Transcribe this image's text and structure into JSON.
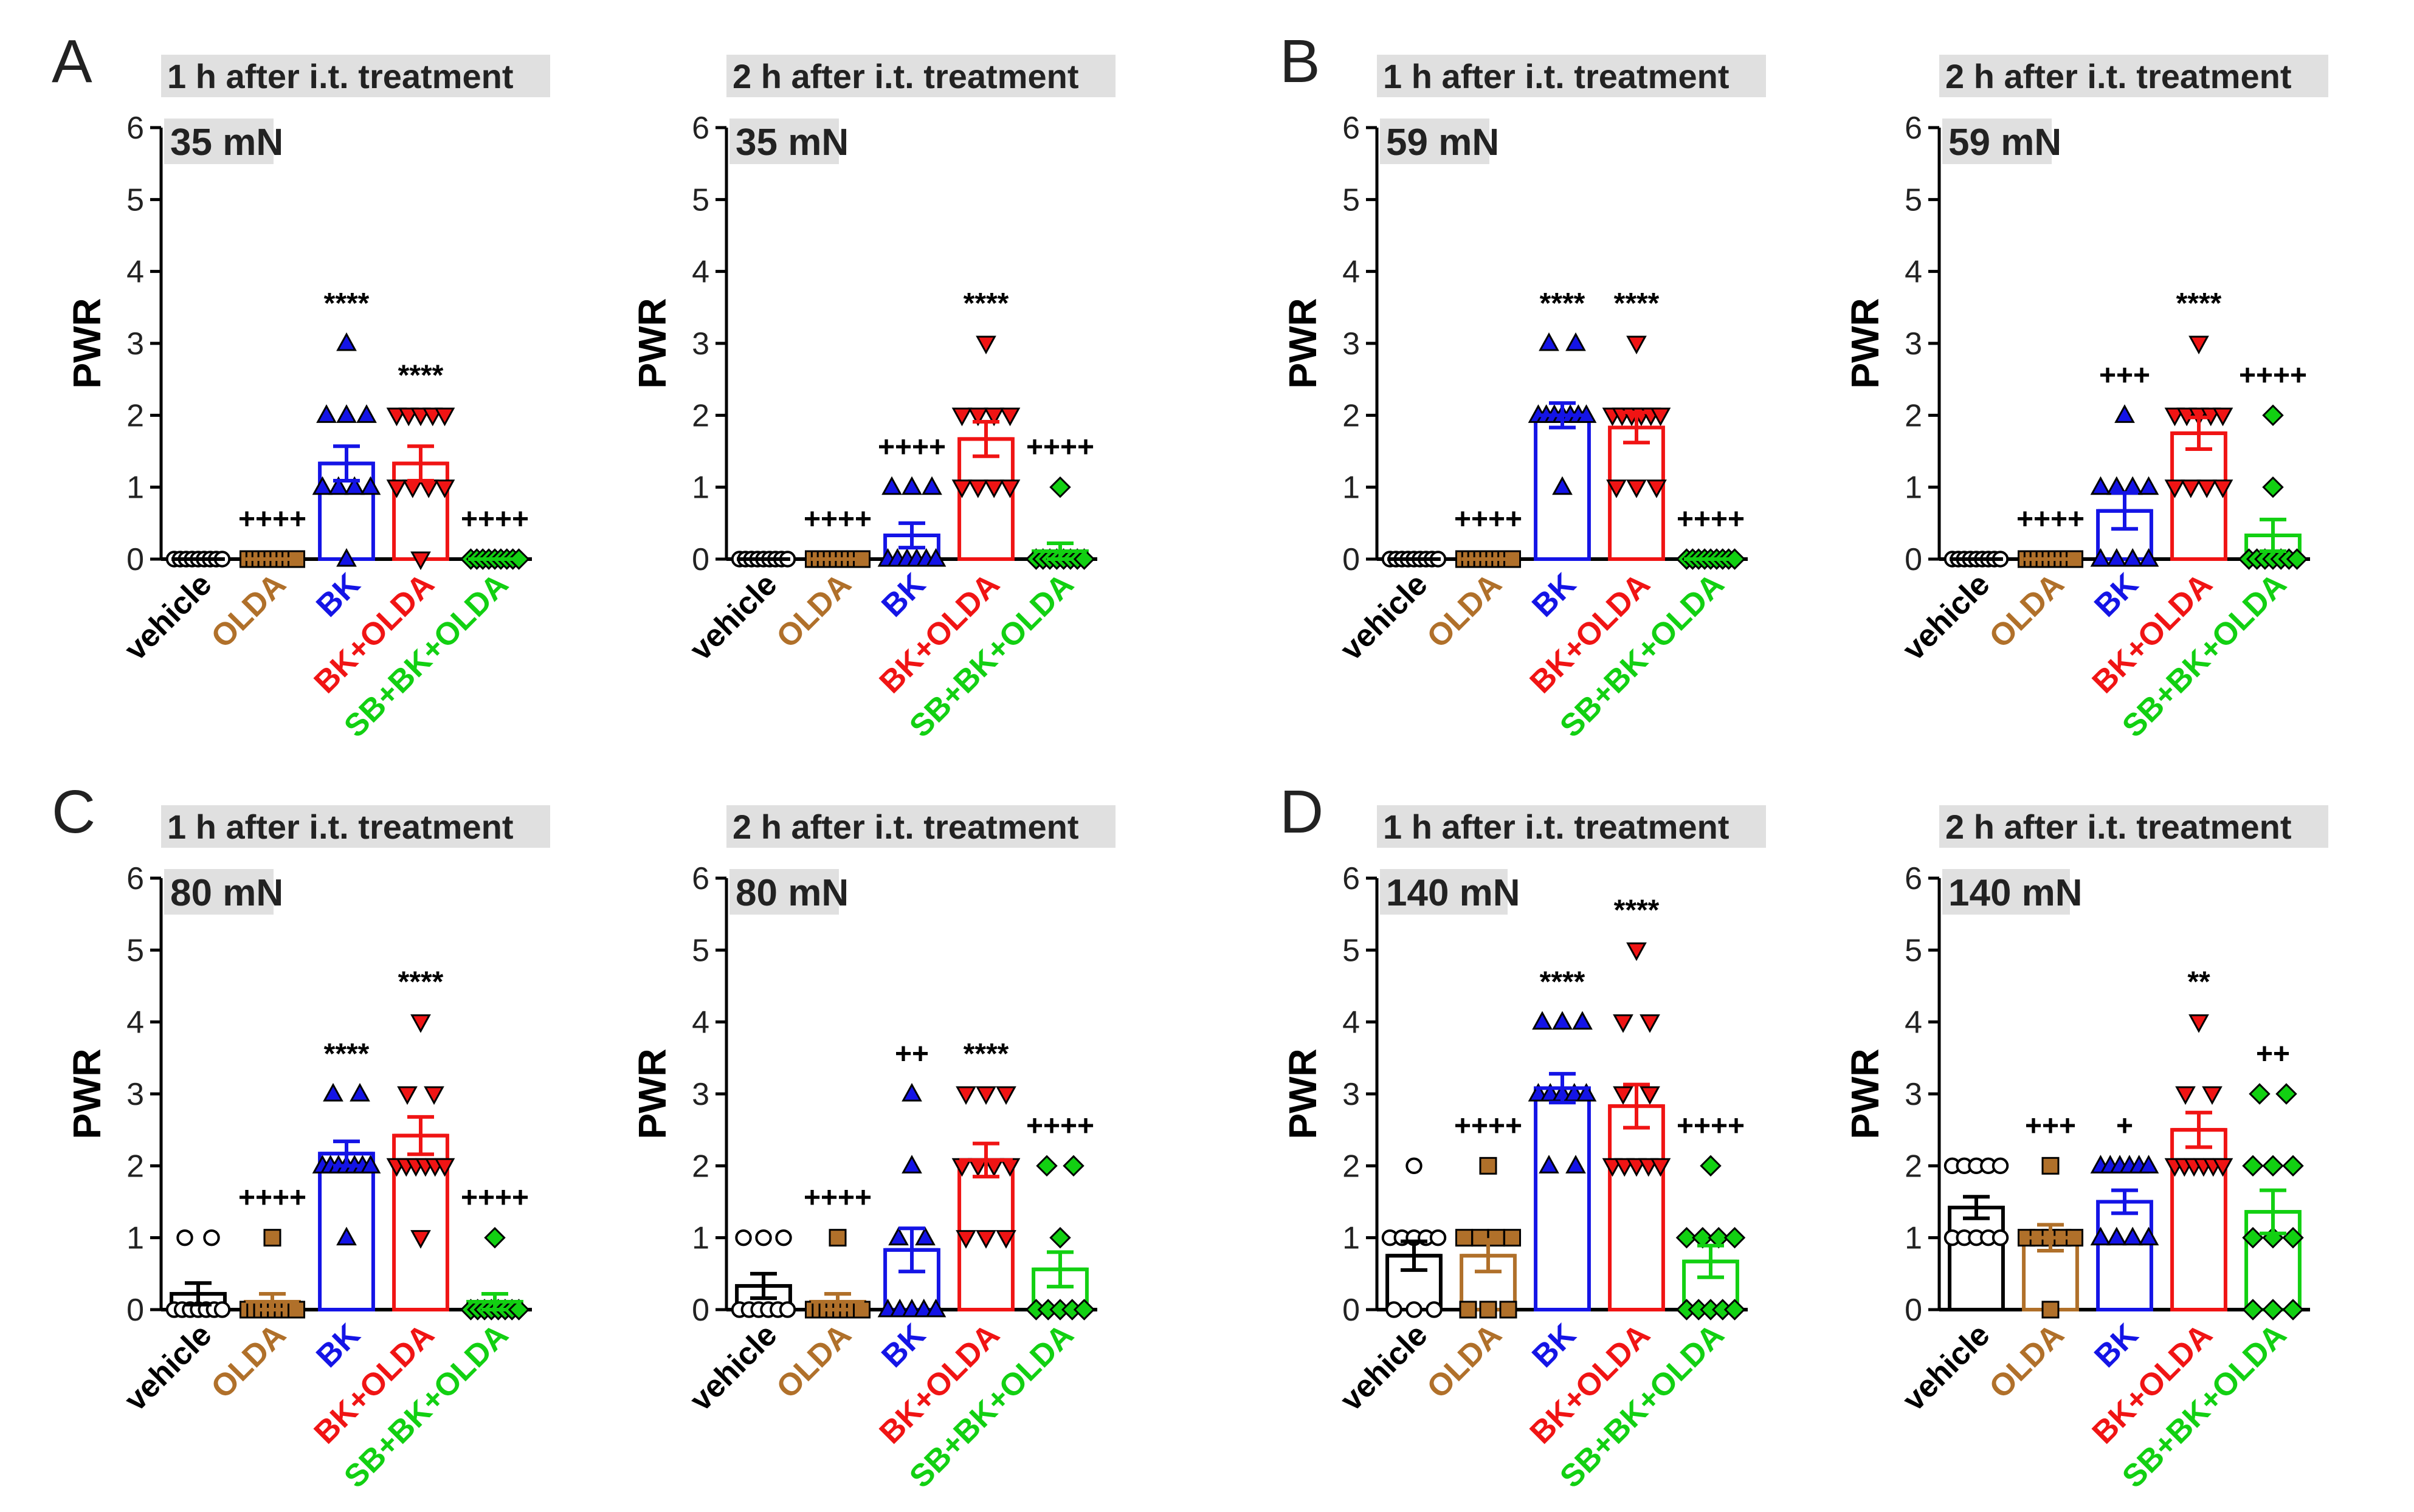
{
  "groups": [
    "vehicle",
    "OLDA",
    "BK",
    "BK+OLDA",
    "SB+BK+OLDA"
  ],
  "colors": {
    "vehicle": "#000000",
    "OLDA": "#b0702a",
    "BK": "#1414e6",
    "BK+OLDA": "#f01414",
    "SB+BK+OLDA": "#12d012",
    "titleBg": "#e0e0e0"
  },
  "panel_letters": [
    "A",
    "B",
    "C",
    "D"
  ],
  "chart_data": [
    {
      "type": "bar",
      "panel": "A",
      "title": "1 h after i.t. treatment",
      "subtitle": "35 mN",
      "ylabel": "PWR",
      "ylim": [
        0,
        6
      ],
      "yticks": [
        0,
        1,
        2,
        3,
        4,
        5,
        6
      ],
      "categories": [
        "vehicle",
        "OLDA",
        "BK",
        "BK+OLDA",
        "SB+BK+OLDA"
      ],
      "means": [
        0,
        0,
        1.33,
        1.33,
        0
      ],
      "sem": [
        0,
        0,
        0.24,
        0.24,
        0
      ],
      "annotations": [
        "",
        "++++",
        "****",
        "****",
        "++++"
      ],
      "points": [
        [
          0,
          0,
          0,
          0,
          0,
          0,
          0,
          0,
          0
        ],
        [
          0,
          0,
          0,
          0,
          0,
          0,
          0,
          0,
          0
        ],
        [
          0,
          1,
          1,
          1,
          1,
          2,
          2,
          2,
          3
        ],
        [
          0,
          1,
          1,
          1,
          1,
          2,
          2,
          2,
          2,
          2
        ],
        [
          0,
          0,
          0,
          0,
          0,
          0,
          0,
          0,
          0
        ]
      ]
    },
    {
      "type": "bar",
      "panel": "A",
      "title": "2 h after i.t. treatment",
      "subtitle": "35 mN",
      "ylabel": "PWR",
      "ylim": [
        0,
        6
      ],
      "yticks": [
        0,
        1,
        2,
        3,
        4,
        5,
        6
      ],
      "categories": [
        "vehicle",
        "OLDA",
        "BK",
        "BK+OLDA",
        "SB+BK+OLDA"
      ],
      "means": [
        0,
        0,
        0.33,
        1.67,
        0.11
      ],
      "sem": [
        0,
        0,
        0.17,
        0.24,
        0.11
      ],
      "annotations": [
        "",
        "++++",
        "++++",
        "****",
        "++++"
      ],
      "points": [
        [
          0,
          0,
          0,
          0,
          0,
          0,
          0,
          0,
          0
        ],
        [
          0,
          0,
          0,
          0,
          0,
          0,
          0,
          0,
          0
        ],
        [
          0,
          0,
          0,
          0,
          0,
          0,
          1,
          1,
          1
        ],
        [
          1,
          1,
          1,
          1,
          2,
          2,
          2,
          2,
          3
        ],
        [
          0,
          0,
          0,
          0,
          0,
          0,
          0,
          0,
          1
        ]
      ]
    },
    {
      "type": "bar",
      "panel": "B",
      "title": "1 h after i.t. treatment",
      "subtitle": "59 mN",
      "ylabel": "PWR",
      "ylim": [
        0,
        6
      ],
      "yticks": [
        0,
        1,
        2,
        3,
        4,
        5,
        6
      ],
      "categories": [
        "vehicle",
        "OLDA",
        "BK",
        "BK+OLDA",
        "SB+BK+OLDA"
      ],
      "means": [
        0,
        0,
        2,
        1.83,
        0
      ],
      "sem": [
        0,
        0,
        0.17,
        0.21,
        0
      ],
      "annotations": [
        "",
        "++++",
        "****",
        "****",
        "++++"
      ],
      "points": [
        [
          0,
          0,
          0,
          0,
          0,
          0,
          0,
          0,
          0
        ],
        [
          0,
          0,
          0,
          0,
          0,
          0,
          0,
          0,
          0
        ],
        [
          1,
          2,
          2,
          2,
          2,
          2,
          2,
          2,
          3,
          3
        ],
        [
          1,
          1,
          1,
          2,
          2,
          2,
          2,
          2,
          2,
          3
        ],
        [
          0,
          0,
          0,
          0,
          0,
          0,
          0,
          0,
          0
        ]
      ]
    },
    {
      "type": "bar",
      "panel": "B",
      "title": "2 h after i.t. treatment",
      "subtitle": "59 mN",
      "ylabel": "PWR",
      "ylim": [
        0,
        6
      ],
      "yticks": [
        0,
        1,
        2,
        3,
        4,
        5,
        6
      ],
      "categories": [
        "vehicle",
        "OLDA",
        "BK",
        "BK+OLDA",
        "SB+BK+OLDA"
      ],
      "means": [
        0,
        0,
        0.67,
        1.75,
        0.33
      ],
      "sem": [
        0,
        0,
        0.25,
        0.22,
        0.22
      ],
      "annotations": [
        "",
        "++++",
        "+++",
        "****",
        "++++"
      ],
      "points": [
        [
          0,
          0,
          0,
          0,
          0,
          0,
          0,
          0,
          0
        ],
        [
          0,
          0,
          0,
          0,
          0,
          0,
          0,
          0,
          0
        ],
        [
          0,
          0,
          0,
          0,
          1,
          1,
          1,
          1,
          2
        ],
        [
          1,
          1,
          1,
          1,
          2,
          2,
          2,
          2,
          2,
          3
        ],
        [
          0,
          0,
          0,
          0,
          0,
          0,
          0,
          1,
          2
        ]
      ]
    },
    {
      "type": "bar",
      "panel": "C",
      "title": "1 h after i.t. treatment",
      "subtitle": "80 mN",
      "ylabel": "PWR",
      "ylim": [
        0,
        6
      ],
      "yticks": [
        0,
        1,
        2,
        3,
        4,
        5,
        6
      ],
      "categories": [
        "vehicle",
        "OLDA",
        "BK",
        "BK+OLDA",
        "SB+BK+OLDA"
      ],
      "means": [
        0.22,
        0.11,
        2.17,
        2.42,
        0.11
      ],
      "sem": [
        0.15,
        0.11,
        0.17,
        0.26,
        0.11
      ],
      "annotations": [
        "",
        "++++",
        "****",
        "****",
        "++++"
      ],
      "points": [
        [
          0,
          0,
          0,
          0,
          0,
          0,
          0,
          1,
          1
        ],
        [
          0,
          0,
          0,
          0,
          0,
          0,
          0,
          0,
          1
        ],
        [
          1,
          2,
          2,
          2,
          2,
          2,
          2,
          2,
          3,
          3
        ],
        [
          1,
          2,
          2,
          2,
          2,
          2,
          2,
          3,
          3,
          4
        ],
        [
          0,
          0,
          0,
          0,
          0,
          0,
          0,
          0,
          1
        ]
      ]
    },
    {
      "type": "bar",
      "panel": "C",
      "title": "2 h after i.t. treatment",
      "subtitle": "80 mN",
      "ylabel": "PWR",
      "ylim": [
        0,
        6
      ],
      "yticks": [
        0,
        1,
        2,
        3,
        4,
        5,
        6
      ],
      "categories": [
        "vehicle",
        "OLDA",
        "BK",
        "BK+OLDA",
        "SB+BK+OLDA"
      ],
      "means": [
        0.33,
        0.11,
        0.83,
        2.08,
        0.56
      ],
      "sem": [
        0.17,
        0.11,
        0.3,
        0.23,
        0.24
      ],
      "annotations": [
        "",
        "++++",
        "++",
        "****",
        "++++"
      ],
      "points": [
        [
          0,
          0,
          0,
          0,
          0,
          0,
          1,
          1,
          1
        ],
        [
          0,
          0,
          0,
          0,
          0,
          0,
          0,
          0,
          1
        ],
        [
          0,
          0,
          0,
          0,
          0,
          1,
          1,
          2,
          3
        ],
        [
          1,
          1,
          1,
          2,
          2,
          2,
          2,
          3,
          3,
          3
        ],
        [
          0,
          0,
          0,
          0,
          0,
          1,
          2,
          2
        ]
      ]
    },
    {
      "type": "bar",
      "panel": "D",
      "title": "1 h after i.t. treatment",
      "subtitle": "140 mN",
      "ylabel": "PWR",
      "ylim": [
        0,
        6
      ],
      "yticks": [
        0,
        1,
        2,
        3,
        4,
        5,
        6
      ],
      "categories": [
        "vehicle",
        "OLDA",
        "BK",
        "BK+OLDA",
        "SB+BK+OLDA"
      ],
      "means": [
        0.75,
        0.75,
        3.08,
        2.83,
        0.67
      ],
      "sem": [
        0.2,
        0.22,
        0.2,
        0.3,
        0.22
      ],
      "annotations": [
        "",
        "++++",
        "****",
        "****",
        "++++"
      ],
      "points": [
        [
          0,
          0,
          0,
          1,
          1,
          1,
          1,
          1,
          2
        ],
        [
          0,
          0,
          0,
          1,
          1,
          1,
          1,
          2
        ],
        [
          2,
          2,
          3,
          3,
          3,
          3,
          3,
          4,
          4,
          4
        ],
        [
          2,
          2,
          2,
          2,
          2,
          3,
          3,
          4,
          4,
          5
        ],
        [
          0,
          0,
          0,
          0,
          0,
          1,
          1,
          1,
          1,
          2
        ]
      ]
    },
    {
      "type": "bar",
      "panel": "D",
      "title": "2 h after i.t. treatment",
      "subtitle": "140 mN",
      "ylabel": "PWR",
      "ylim": [
        0,
        6
      ],
      "yticks": [
        0,
        1,
        2,
        3,
        4,
        5,
        6
      ],
      "categories": [
        "vehicle",
        "OLDA",
        "BK",
        "BK+OLDA",
        "SB+BK+OLDA"
      ],
      "means": [
        1.42,
        1,
        1.5,
        2.5,
        1.36
      ],
      "sem": [
        0.15,
        0.18,
        0.16,
        0.24,
        0.3
      ],
      "annotations": [
        "",
        "+++",
        "+",
        "**",
        "++"
      ],
      "points": [
        [
          1,
          1,
          1,
          1,
          1,
          2,
          2,
          2,
          2,
          2
        ],
        [
          0,
          1,
          1,
          1,
          1,
          1,
          2
        ],
        [
          1,
          1,
          1,
          1,
          2,
          2,
          2,
          2,
          2,
          2
        ],
        [
          2,
          2,
          2,
          2,
          2,
          2,
          3,
          3,
          4
        ],
        [
          0,
          0,
          0,
          1,
          1,
          1,
          2,
          2,
          2,
          3,
          3
        ]
      ]
    }
  ]
}
